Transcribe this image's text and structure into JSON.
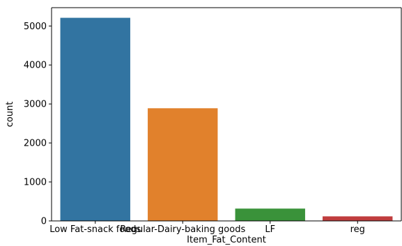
{
  "chart_data": {
    "type": "bar",
    "categories": [
      "Low Fat-snack foods",
      "Regular-Dairy-baking goods",
      "LF",
      "reg"
    ],
    "values": [
      5210,
      2890,
      316,
      117
    ],
    "colors": [
      "#3274a1",
      "#e1812c",
      "#3a923a",
      "#c03d3e"
    ],
    "xlabel": "Item_Fat_Content",
    "ylabel": "count",
    "ylim": [
      0,
      5470
    ],
    "yticks": [
      0,
      1000,
      2000,
      3000,
      4000,
      5000
    ],
    "grid": false,
    "legend": false
  }
}
